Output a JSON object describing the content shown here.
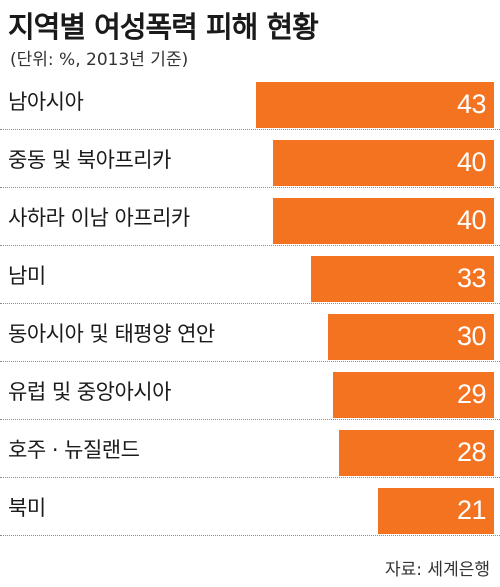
{
  "title": "지역별 여성폭력 피해 현황",
  "subtitle": "(단위: %, 2013년 기준)",
  "source": "자료: 세계은행",
  "colors": {
    "bar": "#f37321",
    "value_text": "#ffffff"
  },
  "chart_data": {
    "type": "bar",
    "orientation": "horizontal",
    "title": "지역별 여성폭력 피해 현황",
    "unit": "%",
    "categories": [
      "남아시아",
      "중동 및 북아프리카",
      "사하라 이남 아프리카",
      "남미",
      "동아시아 및 태평양 연안",
      "유럽 및 중앙아시아",
      "호주 · 뉴질랜드",
      "북미"
    ],
    "values": [
      43,
      40,
      40,
      33,
      30,
      29,
      28,
      21
    ],
    "xlim": [
      0,
      43
    ],
    "grid": false
  }
}
